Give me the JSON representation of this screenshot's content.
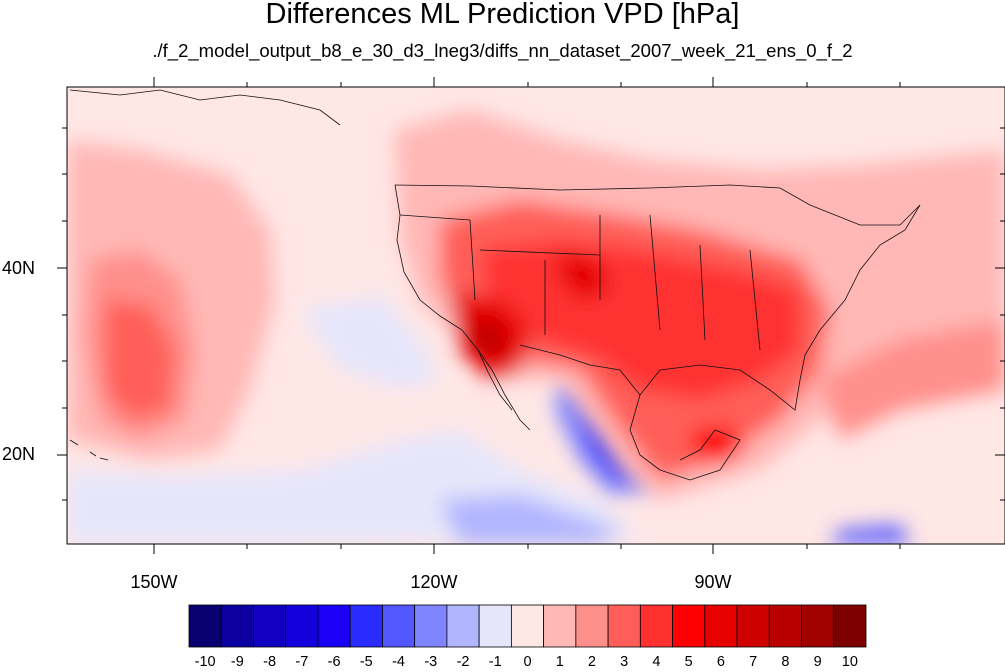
{
  "title": "Differences ML Prediction VPD [hPa]",
  "subtitle": "./f_2_model_output_b8_e_30_d3_lneg3/diffs_nn_dataset_2007_week_21_ens_0_f_2",
  "map": {
    "lat_labels": [
      "40N",
      "20N"
    ],
    "lon_labels": [
      "150W",
      "120W",
      "90W"
    ],
    "lon_range": [
      -160,
      -60
    ],
    "lat_range": [
      11,
      60
    ]
  },
  "colorbar": {
    "labels": [
      "-10",
      "-9",
      "-8",
      "-7",
      "-6",
      "-5",
      "-4",
      "-3",
      "-2",
      "-1",
      "0",
      "1",
      "2",
      "3",
      "4",
      "5",
      "6",
      "7",
      "8",
      "9",
      "10"
    ],
    "colors": [
      "#08006e",
      "#0c00a0",
      "#1100c4",
      "#1400dc",
      "#1a00f5",
      "#2a2bff",
      "#5357ff",
      "#7f84ff",
      "#b0b5fe",
      "#e6e6fb",
      "#ffe7e6",
      "#ffb8b6",
      "#ff8f8b",
      "#ff5e58",
      "#ff3030",
      "#ff0000",
      "#e60000",
      "#cf0000",
      "#b80000",
      "#a00000",
      "#7e0000"
    ]
  }
}
